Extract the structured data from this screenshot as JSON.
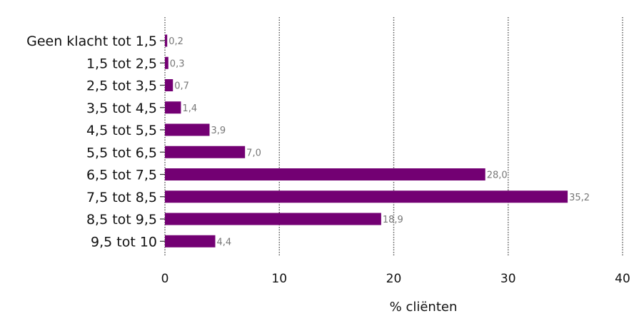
{
  "chart_data": {
    "type": "bar",
    "orientation": "horizontal",
    "categories": [
      "Geen klacht tot 1,5",
      "1,5 tot 2,5",
      "2,5 tot 3,5",
      "3,5 tot 4,5",
      "4,5 tot 5,5",
      "5,5 tot 6,5",
      "6,5 tot 7,5",
      "7,5 tot 8,5",
      "8,5 tot 9,5",
      "9,5 tot 10"
    ],
    "values": [
      0.2,
      0.3,
      0.7,
      1.4,
      3.9,
      7.0,
      28.0,
      35.2,
      18.9,
      4.4
    ],
    "value_labels": [
      "0,2",
      "0,3",
      "0,7",
      "1,4",
      "3,9",
      "7,0",
      "28,0",
      "35,2",
      "18,9",
      "4,4"
    ],
    "xlim": [
      0,
      40
    ],
    "xticks": [
      0,
      10,
      20,
      30,
      40
    ],
    "xtick_labels": [
      "0",
      "10",
      "20",
      "30",
      "40"
    ],
    "xlabel": "% cliënten",
    "ylabel": "",
    "title": "",
    "grid": "vertical-dotted",
    "legend": "none",
    "bar_color": "#730073",
    "label_color": "#777777"
  }
}
